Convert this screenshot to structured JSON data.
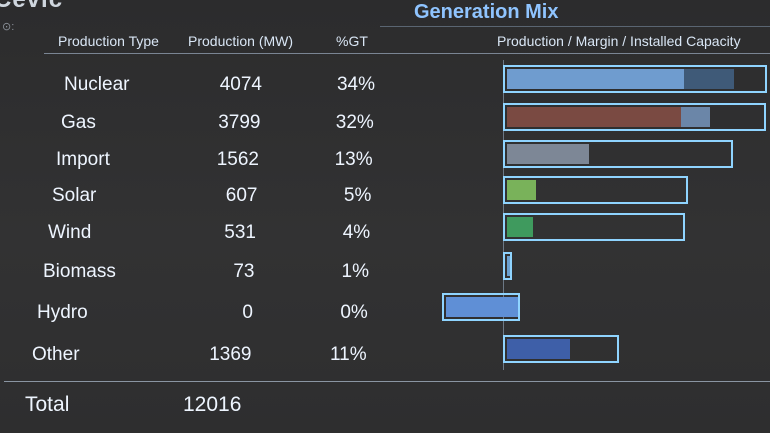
{
  "header": {
    "logo_text": "Cevic",
    "title": "Generation Mix",
    "col_type": "Production Type",
    "col_mw": "Production (MW)",
    "col_pct": "%GT",
    "col_bars": "Production / Margin / Installed Capacity"
  },
  "rows": [
    {
      "type": "Nuclear",
      "mw": "4074",
      "pct": "34%",
      "production": 0.67,
      "margin": 0.86,
      "capacity": 1.0,
      "fill": "#6f9ccf",
      "margin_fill": "#3f5a78"
    },
    {
      "type": "Gas",
      "mw": "3799",
      "pct": "32%",
      "production": 0.66,
      "margin": 0.77,
      "capacity": 0.995,
      "fill": "#7a4a42",
      "margin_fill": "#6b86a8"
    },
    {
      "type": "Import",
      "mw": "1562",
      "pct": "13%",
      "production": 0.31,
      "margin": 0.31,
      "capacity": 0.87,
      "fill": "#7d8796",
      "margin_fill": "#7d8796"
    },
    {
      "type": "Solar",
      "mw": "607",
      "pct": "5%",
      "production": 0.11,
      "margin": 0.11,
      "capacity": 0.7,
      "fill": "#79b25a",
      "margin_fill": "#79b25a"
    },
    {
      "type": "Wind",
      "mw": "531",
      "pct": "4%",
      "production": 0.1,
      "margin": 0.1,
      "capacity": 0.69,
      "fill": "#3f9a5e",
      "margin_fill": "#3f9a5e"
    },
    {
      "type": "Biomass",
      "mw": "73",
      "pct": "1%",
      "production": 0.03,
      "margin": 0.03,
      "capacity": 0.035,
      "fill": "#6aa0d0",
      "margin_fill": "#6aa0d0"
    },
    {
      "type": "Hydro",
      "mw": "0",
      "pct": "0%",
      "production": 0.0,
      "margin": 0.0,
      "capacity": 0.25,
      "fill": "#5f8fd6",
      "margin_fill": "#5f8fd6",
      "negative_span": 0.23
    },
    {
      "type": "Other",
      "mw": "1369",
      "pct": "11%",
      "production": 0.24,
      "margin": 0.24,
      "capacity": 0.44,
      "fill": "#3e5fa8",
      "margin_fill": "#3e5fa8"
    }
  ],
  "total": {
    "label": "Total",
    "mw": "12016"
  },
  "colors": {
    "title": "#8fc4ff",
    "frame": "#8fd4ff",
    "background": "#2f2f30"
  }
}
